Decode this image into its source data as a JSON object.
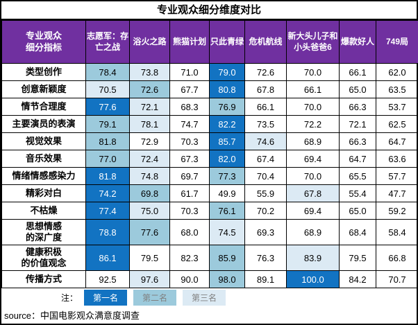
{
  "title": "专业观众细分维度对比",
  "colors": {
    "header_bg": "#7030A0",
    "header_text": "#FFFFFF",
    "rank1_bg": "#1273C2",
    "rank1_text": "#FFFFFF",
    "rank2_bg": "#9CCADC",
    "rank3_bg": "#DCEAF4",
    "legend_muted_text": "#808080",
    "border": "#000000"
  },
  "chart_data": {
    "type": "table",
    "title": "专业观众细分维度对比",
    "row_header": "专业观众\n细分指标",
    "categories": [
      "志愿军：存亡之战",
      "浴火之路",
      "熊猫计划",
      "只此青绿",
      "危机航线",
      "新大头儿子和小头爸爸6",
      "爆款好人",
      "749局"
    ],
    "rows": [
      {
        "label": "类型创作",
        "values": [
          78.4,
          73.8,
          71.0,
          79.0,
          72.6,
          70.0,
          66.1,
          62.0
        ],
        "ranks": [
          2,
          3,
          0,
          1,
          0,
          0,
          0,
          0
        ]
      },
      {
        "label": "创意新颖度",
        "values": [
          70.5,
          72.6,
          67.7,
          80.8,
          67.8,
          66.1,
          65.0,
          63.5
        ],
        "ranks": [
          3,
          2,
          0,
          1,
          0,
          0,
          0,
          0
        ]
      },
      {
        "label": "情节合理度",
        "values": [
          77.6,
          72.1,
          68.3,
          76.9,
          66.1,
          70.0,
          66.3,
          53.7
        ],
        "ranks": [
          1,
          3,
          0,
          2,
          0,
          0,
          0,
          0
        ]
      },
      {
        "label": "主要演员的表演",
        "values": [
          79.1,
          78.1,
          74.7,
          82.2,
          73.5,
          72.2,
          72.1,
          62.5
        ],
        "ranks": [
          2,
          3,
          0,
          1,
          0,
          0,
          0,
          0
        ]
      },
      {
        "label": "视觉效果",
        "values": [
          81.8,
          72.9,
          70.3,
          85.7,
          74.6,
          68.9,
          66.3,
          64.7
        ],
        "ranks": [
          2,
          0,
          0,
          1,
          3,
          0,
          0,
          0
        ]
      },
      {
        "label": "音乐效果",
        "values": [
          77.0,
          72.4,
          67.3,
          82.0,
          67.4,
          69.4,
          64.7,
          63.6
        ],
        "ranks": [
          2,
          3,
          0,
          1,
          0,
          0,
          0,
          0
        ]
      },
      {
        "label": "情绪情感感染力",
        "values": [
          81.8,
          74.8,
          69.7,
          77.3,
          70.4,
          70.0,
          65.5,
          57.7
        ],
        "ranks": [
          1,
          3,
          0,
          2,
          0,
          0,
          0,
          0
        ]
      },
      {
        "label": "精彩对白",
        "values": [
          74.2,
          69.8,
          61.7,
          49.9,
          55.9,
          67.8,
          55.4,
          47.7
        ],
        "ranks": [
          1,
          2,
          0,
          0,
          0,
          3,
          0,
          0
        ]
      },
      {
        "label": "不枯燥",
        "values": [
          77.4,
          75.0,
          70.3,
          76.1,
          70.2,
          69.4,
          65.0,
          59.2
        ],
        "ranks": [
          1,
          3,
          0,
          2,
          0,
          0,
          0,
          0
        ]
      },
      {
        "label": "思想情感\n的深广度",
        "values": [
          78.8,
          77.6,
          68.0,
          74.5,
          69.3,
          68.9,
          68.4,
          58.4
        ],
        "ranks": [
          1,
          2,
          0,
          3,
          0,
          0,
          0,
          0
        ]
      },
      {
        "label": "健康积极\n的价值观念",
        "values": [
          86.1,
          79.5,
          82.3,
          85.9,
          76.3,
          83.9,
          79.5,
          66.8
        ],
        "ranks": [
          1,
          0,
          0,
          2,
          0,
          3,
          0,
          0
        ]
      },
      {
        "label": "传播方式",
        "values": [
          92.5,
          97.6,
          90.0,
          98.0,
          89.1,
          100.0,
          84.2,
          70.7
        ],
        "ranks": [
          0,
          3,
          0,
          2,
          0,
          1,
          0,
          0
        ]
      }
    ],
    "legend": [
      {
        "label": "第一名",
        "rank": 1
      },
      {
        "label": "第二名",
        "rank": 2
      },
      {
        "label": "第三名",
        "rank": 3
      }
    ],
    "note_prefix": "注：",
    "source_prefix": "source：",
    "source": "中国电影观众满意度调查"
  }
}
